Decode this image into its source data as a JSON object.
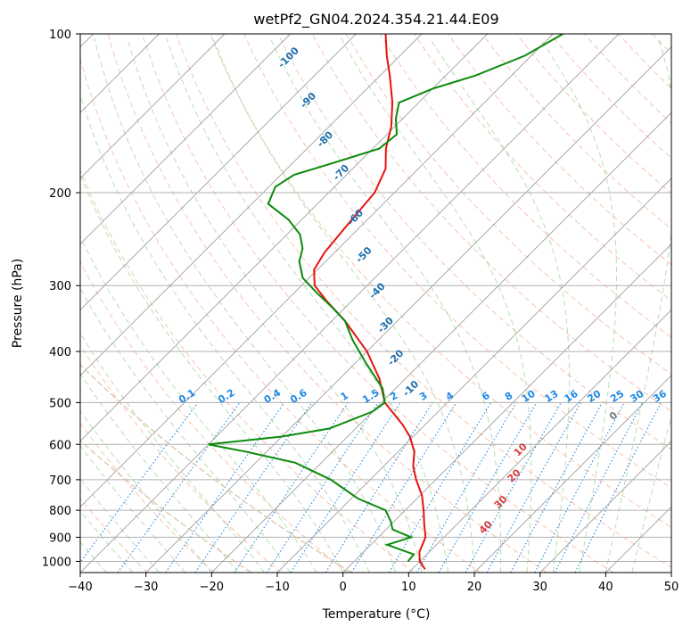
{
  "chart_data": {
    "type": "skew-t log-p",
    "title": "wetPf2_GN04.2024.354.21.44.E09",
    "xlabel": "Temperature (°C)",
    "ylabel": "Pressure (hPa)",
    "xlim": [
      -40,
      50
    ],
    "ylim_hpa": [
      1050,
      100
    ],
    "log_pressure_axis": true,
    "skew_degrees": 45,
    "grid": true,
    "x_ticks": [
      -40,
      -30,
      -20,
      -10,
      0,
      10,
      20,
      30,
      40,
      50
    ],
    "y_ticks": [
      1000,
      900,
      800,
      700,
      600,
      500,
      400,
      300,
      200,
      100
    ],
    "colors": {
      "temperature": "#e8120e",
      "dewpoint": "#0b8a0b",
      "isotherm": "#a0a0a0",
      "pressure_grid": "#b0b0b0",
      "dry_adiabat": "#f4a582",
      "moist_adiabat": "#7fbf7b",
      "mixing_ratio": "#1e88e5",
      "lcl_curve": "#d9c3a5",
      "moist_label": "#1f6fb0",
      "dry_label": "#d43a3a"
    },
    "series": [
      {
        "name": "temperature",
        "points": [
          {
            "p": 1035,
            "t": 12.0
          },
          {
            "p": 1000,
            "t": 10.0
          },
          {
            "p": 960,
            "t": 8.5
          },
          {
            "p": 900,
            "t": 7.2
          },
          {
            "p": 850,
            "t": 5.0
          },
          {
            "p": 800,
            "t": 2.8
          },
          {
            "p": 750,
            "t": 0.3
          },
          {
            "p": 700,
            "t": -3.0
          },
          {
            "p": 660,
            "t": -5.5
          },
          {
            "p": 620,
            "t": -7.5
          },
          {
            "p": 580,
            "t": -10.5
          },
          {
            "p": 550,
            "t": -13.5
          },
          {
            "p": 500,
            "t": -19.5
          },
          {
            "p": 450,
            "t": -24.0
          },
          {
            "p": 400,
            "t": -30.0
          },
          {
            "p": 350,
            "t": -38.0
          },
          {
            "p": 320,
            "t": -44.0
          },
          {
            "p": 300,
            "t": -48.0
          },
          {
            "p": 280,
            "t": -50.5
          },
          {
            "p": 260,
            "t": -51.5
          },
          {
            "p": 240,
            "t": -52.0
          },
          {
            "p": 220,
            "t": -52.5
          },
          {
            "p": 200,
            "t": -53.0
          },
          {
            "p": 180,
            "t": -55.0
          },
          {
            "p": 165,
            "t": -58.0
          },
          {
            "p": 150,
            "t": -60.5
          },
          {
            "p": 135,
            "t": -64.0
          },
          {
            "p": 120,
            "t": -68.5
          },
          {
            "p": 110,
            "t": -72.0
          },
          {
            "p": 100,
            "t": -75.5
          }
        ]
      },
      {
        "name": "dewpoint",
        "points": [
          {
            "p": 1000,
            "t": 8.2
          },
          {
            "p": 970,
            "t": 8.0
          },
          {
            "p": 930,
            "t": 2.5
          },
          {
            "p": 900,
            "t": 5.0
          },
          {
            "p": 870,
            "t": 1.0
          },
          {
            "p": 840,
            "t": -0.5
          },
          {
            "p": 800,
            "t": -3.0
          },
          {
            "p": 760,
            "t": -9.0
          },
          {
            "p": 700,
            "t": -16.0
          },
          {
            "p": 650,
            "t": -24.0
          },
          {
            "p": 620,
            "t": -33.0
          },
          {
            "p": 600,
            "t": -40.0
          },
          {
            "p": 580,
            "t": -30.0
          },
          {
            "p": 560,
            "t": -24.0
          },
          {
            "p": 520,
            "t": -20.0
          },
          {
            "p": 500,
            "t": -19.5
          },
          {
            "p": 470,
            "t": -22.0
          },
          {
            "p": 420,
            "t": -28.5
          },
          {
            "p": 380,
            "t": -34.0
          },
          {
            "p": 350,
            "t": -38.0
          },
          {
            "p": 330,
            "t": -42.0
          },
          {
            "p": 310,
            "t": -46.5
          },
          {
            "p": 290,
            "t": -51.0
          },
          {
            "p": 270,
            "t": -54.0
          },
          {
            "p": 255,
            "t": -55.5
          },
          {
            "p": 240,
            "t": -58.0
          },
          {
            "p": 225,
            "t": -62.0
          },
          {
            "p": 210,
            "t": -67.5
          },
          {
            "p": 195,
            "t": -69.0
          },
          {
            "p": 185,
            "t": -68.0
          },
          {
            "p": 175,
            "t": -63.5
          },
          {
            "p": 165,
            "t": -59.0
          },
          {
            "p": 155,
            "t": -58.5
          },
          {
            "p": 145,
            "t": -61.0
          },
          {
            "p": 135,
            "t": -63.0
          },
          {
            "p": 127,
            "t": -60.0
          },
          {
            "p": 120,
            "t": -55.5
          },
          {
            "p": 110,
            "t": -51.0
          },
          {
            "p": 100,
            "t": -48.5
          }
        ]
      }
    ],
    "mixing_ratio_labels": [
      "0.1",
      "0.2",
      "0.4",
      "0.6",
      "1",
      "1.5",
      "2",
      "3",
      "4",
      "6",
      "8",
      "10",
      "13",
      "16",
      "20",
      "25",
      "30",
      "36"
    ],
    "mixing_ratio_temps_at_500": [
      -23.5,
      -17.5,
      -10.5,
      -6.5,
      0.5,
      4.5,
      8.0,
      12.5,
      16.5,
      22.0,
      25.5,
      28.5,
      32.0,
      35.0,
      38.5,
      42.0,
      45.0,
      48.5
    ],
    "moist_adiabat_labels": [
      {
        "label": "-100",
        "t": -86.0,
        "p": 112
      },
      {
        "label": "-90",
        "t": -76.5,
        "p": 135
      },
      {
        "label": "-80",
        "t": -68.0,
        "p": 160
      },
      {
        "label": "-70",
        "t": -60.5,
        "p": 185
      },
      {
        "label": "-60",
        "t": -51.5,
        "p": 225
      },
      {
        "label": "-50",
        "t": -44.5,
        "p": 265
      },
      {
        "label": "-40",
        "t": -37.0,
        "p": 310
      },
      {
        "label": "-30",
        "t": -30.5,
        "p": 360
      },
      {
        "label": "-20",
        "t": -24.0,
        "p": 415
      },
      {
        "label": "-10",
        "t": -17.0,
        "p": 475
      },
      {
        "label": "0",
        "t": 18.0,
        "p": 535
      }
    ],
    "dry_adiabat_labels": [
      {
        "label": "10",
        "t": 9.0,
        "p": 620
      },
      {
        "label": "20",
        "t": 12.0,
        "p": 695
      },
      {
        "label": "30",
        "t": 14.0,
        "p": 780
      },
      {
        "label": "40",
        "t": 15.5,
        "p": 870
      }
    ]
  }
}
